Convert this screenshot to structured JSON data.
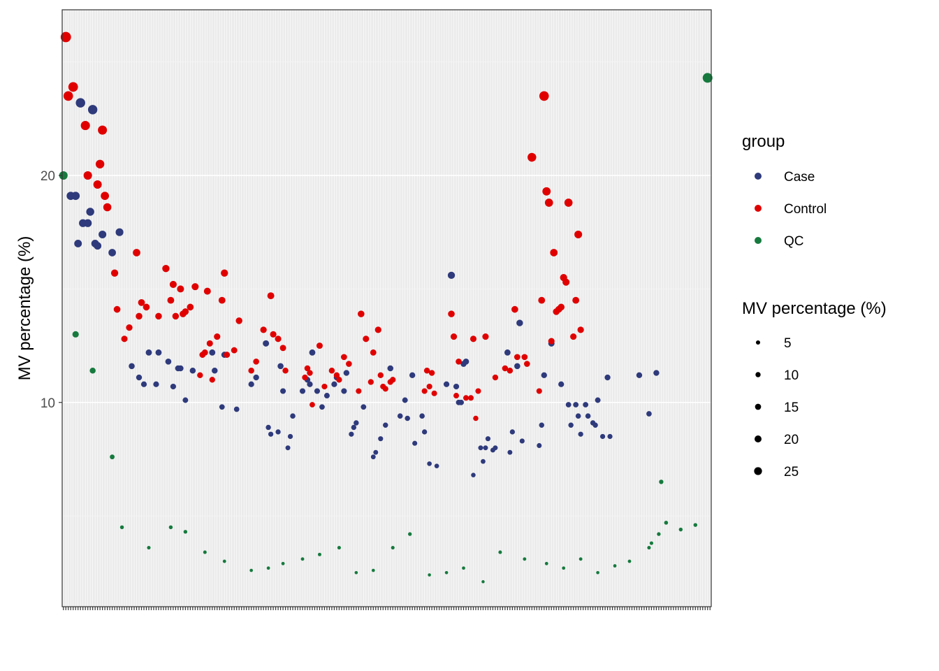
{
  "chart_data": {
    "type": "scatter",
    "ylabel": "MV percentage (%)",
    "xlabel": "",
    "ylim": [
      1,
      27.3
    ],
    "yticks": [
      10,
      20
    ],
    "grid": true,
    "legend_position": "right",
    "colors": {
      "Case": "#2e3a7b",
      "Control": "#e00000",
      "QC": "#167a3e"
    },
    "legend_group": {
      "title": "group",
      "entries": [
        "Case",
        "Control",
        "QC"
      ]
    },
    "legend_size": {
      "title": "MV percentage (%)",
      "entries": [
        "5",
        "10",
        "15",
        "20",
        "25"
      ]
    },
    "n_samples": 266,
    "series": [
      {
        "name": "Case",
        "points": [
          [
            4,
            19.1
          ],
          [
            6,
            19.1
          ],
          [
            7,
            17.0
          ],
          [
            8,
            23.2
          ],
          [
            9,
            17.9
          ],
          [
            11,
            17.9
          ],
          [
            12,
            18.4
          ],
          [
            13,
            22.9
          ],
          [
            14,
            17.0
          ],
          [
            15,
            16.9
          ],
          [
            17,
            17.4
          ],
          [
            21,
            16.6
          ],
          [
            24,
            17.5
          ],
          [
            29,
            11.6
          ],
          [
            32,
            11.1
          ],
          [
            34,
            10.8
          ],
          [
            36,
            12.2
          ],
          [
            39,
            10.8
          ],
          [
            40,
            12.2
          ],
          [
            44,
            11.8
          ],
          [
            46,
            10.7
          ],
          [
            48,
            11.5
          ],
          [
            49,
            11.5
          ],
          [
            51,
            10.1
          ],
          [
            54,
            11.4
          ],
          [
            62,
            12.2
          ],
          [
            63,
            11.4
          ],
          [
            66,
            9.8
          ],
          [
            67,
            12.1
          ],
          [
            72,
            9.7
          ],
          [
            78,
            10.8
          ],
          [
            80,
            11.1
          ],
          [
            84,
            12.6
          ],
          [
            85,
            8.9
          ],
          [
            86,
            8.6
          ],
          [
            89,
            8.7
          ],
          [
            90,
            11.6
          ],
          [
            91,
            10.5
          ],
          [
            93,
            8.0
          ],
          [
            94,
            8.5
          ],
          [
            95,
            9.4
          ],
          [
            99,
            10.5
          ],
          [
            101,
            11.0
          ],
          [
            102,
            10.8
          ],
          [
            103,
            12.2
          ],
          [
            105,
            10.5
          ],
          [
            107,
            9.8
          ],
          [
            109,
            10.3
          ],
          [
            112,
            10.8
          ],
          [
            113,
            11.1
          ],
          [
            116,
            10.5
          ],
          [
            117,
            11.3
          ],
          [
            119,
            8.6
          ],
          [
            120,
            8.9
          ],
          [
            121,
            9.1
          ],
          [
            124,
            9.8
          ],
          [
            128,
            7.6
          ],
          [
            129,
            7.8
          ],
          [
            131,
            8.4
          ],
          [
            133,
            9.0
          ],
          [
            135,
            11.5
          ],
          [
            139,
            9.4
          ],
          [
            141,
            10.1
          ],
          [
            142,
            9.3
          ],
          [
            144,
            11.2
          ],
          [
            145,
            8.2
          ],
          [
            148,
            9.4
          ],
          [
            149,
            8.7
          ],
          [
            151,
            7.3
          ],
          [
            154,
            7.2
          ],
          [
            158,
            10.8
          ],
          [
            160,
            15.6
          ],
          [
            162,
            10.7
          ],
          [
            163,
            10.0
          ],
          [
            164,
            10.0
          ],
          [
            165,
            11.7
          ],
          [
            166,
            11.8
          ],
          [
            169,
            6.8
          ],
          [
            172,
            8.0
          ],
          [
            173,
            7.4
          ],
          [
            174,
            8.0
          ],
          [
            175,
            8.4
          ],
          [
            177,
            7.9
          ],
          [
            178,
            8.0
          ],
          [
            183,
            12.2
          ],
          [
            184,
            7.8
          ],
          [
            185,
            8.7
          ],
          [
            187,
            11.6
          ],
          [
            188,
            13.5
          ],
          [
            189,
            8.3
          ],
          [
            196,
            8.1
          ],
          [
            197,
            9.0
          ],
          [
            198,
            11.2
          ],
          [
            201,
            12.6
          ],
          [
            205,
            10.8
          ],
          [
            208,
            9.9
          ],
          [
            209,
            9.0
          ],
          [
            211,
            9.9
          ],
          [
            212,
            9.4
          ],
          [
            213,
            8.6
          ],
          [
            215,
            9.9
          ],
          [
            216,
            9.4
          ],
          [
            218,
            9.1
          ],
          [
            219,
            9.0
          ],
          [
            220,
            10.1
          ],
          [
            222,
            8.5
          ],
          [
            224,
            11.1
          ],
          [
            225,
            8.5
          ],
          [
            237,
            11.2
          ],
          [
            241,
            9.5
          ],
          [
            244,
            11.3
          ]
        ]
      },
      {
        "name": "Control",
        "points": [
          [
            2,
            26.1
          ],
          [
            3,
            23.5
          ],
          [
            5,
            23.9
          ],
          [
            10,
            22.2
          ],
          [
            11,
            20.0
          ],
          [
            15,
            19.6
          ],
          [
            16,
            20.5
          ],
          [
            17,
            22.0
          ],
          [
            18,
            19.1
          ],
          [
            19,
            18.6
          ],
          [
            22,
            15.7
          ],
          [
            23,
            14.1
          ],
          [
            26,
            12.8
          ],
          [
            28,
            13.3
          ],
          [
            31,
            16.6
          ],
          [
            32,
            13.8
          ],
          [
            33,
            14.4
          ],
          [
            35,
            14.2
          ],
          [
            40,
            13.8
          ],
          [
            43,
            15.9
          ],
          [
            45,
            14.5
          ],
          [
            46,
            15.2
          ],
          [
            47,
            13.8
          ],
          [
            49,
            15.0
          ],
          [
            50,
            13.9
          ],
          [
            51,
            14.0
          ],
          [
            53,
            14.2
          ],
          [
            55,
            15.1
          ],
          [
            57,
            11.2
          ],
          [
            58,
            12.1
          ],
          [
            59,
            12.2
          ],
          [
            60,
            14.9
          ],
          [
            61,
            12.6
          ],
          [
            62,
            11.0
          ],
          [
            64,
            12.9
          ],
          [
            66,
            14.5
          ],
          [
            67,
            15.7
          ],
          [
            68,
            12.1
          ],
          [
            71,
            12.3
          ],
          [
            73,
            13.6
          ],
          [
            78,
            11.4
          ],
          [
            80,
            11.8
          ],
          [
            83,
            13.2
          ],
          [
            86,
            14.7
          ],
          [
            87,
            13.0
          ],
          [
            89,
            12.8
          ],
          [
            91,
            12.4
          ],
          [
            92,
            11.4
          ],
          [
            100,
            11.1
          ],
          [
            101,
            11.5
          ],
          [
            102,
            11.3
          ],
          [
            103,
            9.9
          ],
          [
            106,
            12.5
          ],
          [
            108,
            10.7
          ],
          [
            111,
            11.4
          ],
          [
            113,
            11.2
          ],
          [
            114,
            11.0
          ],
          [
            116,
            12.0
          ],
          [
            118,
            11.7
          ],
          [
            122,
            10.5
          ],
          [
            123,
            13.9
          ],
          [
            125,
            12.8
          ],
          [
            127,
            10.9
          ],
          [
            128,
            12.2
          ],
          [
            130,
            13.2
          ],
          [
            131,
            11.2
          ],
          [
            132,
            10.7
          ],
          [
            133,
            10.6
          ],
          [
            135,
            10.9
          ],
          [
            136,
            11.0
          ],
          [
            149,
            10.5
          ],
          [
            150,
            11.4
          ],
          [
            151,
            10.7
          ],
          [
            152,
            11.3
          ],
          [
            153,
            10.4
          ],
          [
            160,
            13.9
          ],
          [
            161,
            12.9
          ],
          [
            162,
            10.3
          ],
          [
            163,
            11.8
          ],
          [
            166,
            10.2
          ],
          [
            168,
            10.2
          ],
          [
            169,
            12.8
          ],
          [
            170,
            9.3
          ],
          [
            171,
            10.5
          ],
          [
            174,
            12.9
          ],
          [
            178,
            11.1
          ],
          [
            182,
            11.5
          ],
          [
            184,
            11.4
          ],
          [
            186,
            14.1
          ],
          [
            187,
            12.0
          ],
          [
            190,
            12.0
          ],
          [
            191,
            11.7
          ],
          [
            193,
            20.8
          ],
          [
            196,
            10.5
          ],
          [
            197,
            14.5
          ],
          [
            198,
            23.5
          ],
          [
            199,
            19.3
          ],
          [
            200,
            18.8
          ],
          [
            201,
            12.7
          ],
          [
            202,
            16.6
          ],
          [
            203,
            14.0
          ],
          [
            204,
            14.1
          ],
          [
            205,
            14.2
          ],
          [
            206,
            15.5
          ],
          [
            207,
            15.3
          ],
          [
            208,
            18.8
          ],
          [
            210,
            12.9
          ],
          [
            211,
            14.5
          ],
          [
            212,
            17.4
          ],
          [
            213,
            13.2
          ]
        ]
      },
      {
        "name": "QC",
        "points": [
          [
            1,
            20.0
          ],
          [
            6,
            13.0
          ],
          [
            13,
            11.4
          ],
          [
            21,
            7.6
          ],
          [
            25,
            4.5
          ],
          [
            36,
            3.6
          ],
          [
            45,
            4.5
          ],
          [
            51,
            4.3
          ],
          [
            59,
            3.4
          ],
          [
            67,
            3.0
          ],
          [
            78,
            2.6
          ],
          [
            85,
            2.7
          ],
          [
            91,
            2.9
          ],
          [
            99,
            3.1
          ],
          [
            106,
            3.3
          ],
          [
            114,
            3.6
          ],
          [
            121,
            2.5
          ],
          [
            128,
            2.6
          ],
          [
            136,
            3.6
          ],
          [
            143,
            4.2
          ],
          [
            151,
            2.4
          ],
          [
            158,
            2.5
          ],
          [
            165,
            2.7
          ],
          [
            173,
            2.1
          ],
          [
            180,
            3.4
          ],
          [
            190,
            3.1
          ],
          [
            199,
            2.9
          ],
          [
            206,
            2.7
          ],
          [
            213,
            3.1
          ],
          [
            220,
            2.5
          ],
          [
            227,
            2.8
          ],
          [
            233,
            3.0
          ],
          [
            241,
            3.6
          ],
          [
            242,
            3.8
          ],
          [
            245,
            4.2
          ],
          [
            246,
            6.5
          ],
          [
            248,
            4.7
          ],
          [
            254,
            4.4
          ],
          [
            260,
            4.6
          ],
          [
            265,
            24.3
          ]
        ]
      }
    ]
  }
}
